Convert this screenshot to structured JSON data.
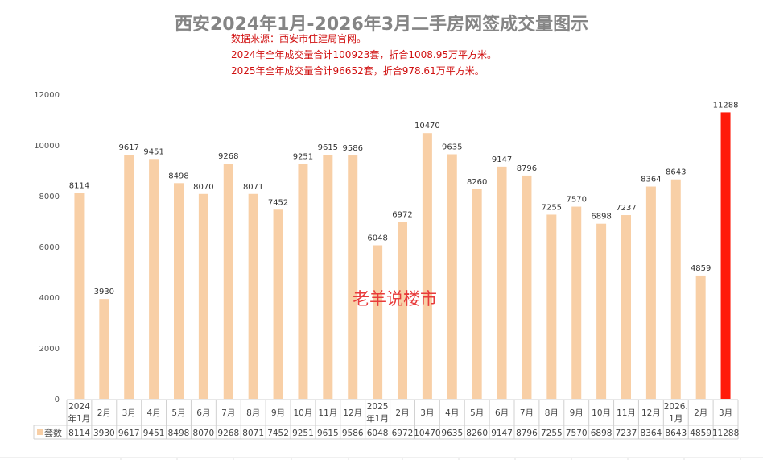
{
  "chart_data": {
    "type": "bar",
    "title": "西安2024年1月-2026年3月二手房网签成交量图示",
    "notes": [
      "数据来源：西安市住建局官网。",
      "2024年全年成交量合计100923套，折合1008.95万平方米。",
      "2025年全年成交量合计96652套，折合978.61万平方米。"
    ],
    "watermark": "老羊说楼市",
    "categories": [
      [
        "2024",
        "年1月"
      ],
      [
        "2月"
      ],
      [
        "3月"
      ],
      [
        "4月"
      ],
      [
        "5月"
      ],
      [
        "6月"
      ],
      [
        "7月"
      ],
      [
        "8月"
      ],
      [
        "9月"
      ],
      [
        "10月"
      ],
      [
        "11月"
      ],
      [
        "12月"
      ],
      [
        "2025",
        "年1月"
      ],
      [
        "2月"
      ],
      [
        "3月"
      ],
      [
        "4月"
      ],
      [
        "5月"
      ],
      [
        "6月"
      ],
      [
        "7月"
      ],
      [
        "8月"
      ],
      [
        "9月"
      ],
      [
        "10月"
      ],
      [
        "11月"
      ],
      [
        "12月"
      ],
      [
        "2026.",
        "1月"
      ],
      [
        "2月"
      ],
      [
        "3月"
      ]
    ],
    "series": [
      {
        "name": "套数",
        "values": [
          8114,
          3930,
          9617,
          9451,
          8498,
          8070,
          9268,
          8071,
          7452,
          9251,
          9615,
          9586,
          6048,
          6972,
          10470,
          9635,
          8260,
          9147,
          8796,
          7255,
          7570,
          6898,
          7237,
          8364,
          8643,
          4859,
          11288
        ]
      }
    ],
    "ylim": [
      0,
      12000
    ],
    "yticks": [
      0,
      2000,
      4000,
      6000,
      8000,
      10000,
      12000
    ],
    "grid": false,
    "data_table": true,
    "colors": {
      "bar": "#f8cfa6",
      "highlight_bar": "#ff1a0a",
      "title": "#858585",
      "notes": "#d01010"
    }
  }
}
